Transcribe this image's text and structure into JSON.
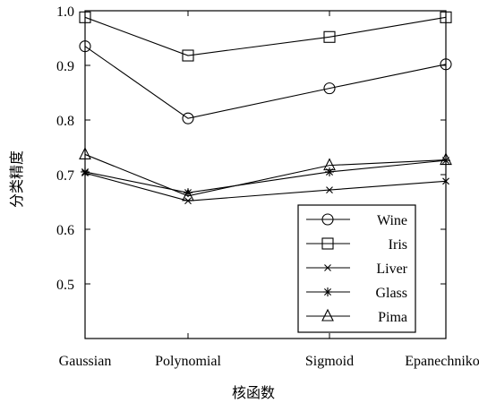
{
  "chart_data": {
    "type": "line",
    "title": "",
    "xlabel": "核函数",
    "ylabel": "分类精度",
    "categories": [
      "Gaussian",
      "Polynomial",
      "Sigmoid",
      "Epanechnikov"
    ],
    "ylim": [
      0.4,
      1.0
    ],
    "yticks": [
      "0.5",
      "0.6",
      "0.7",
      "0.8",
      "0.9",
      "1.0"
    ],
    "grid": false,
    "legend_position": "bottom-right",
    "series": [
      {
        "name": "Wine",
        "marker": "circle",
        "values": [
          0.935,
          0.803,
          0.858,
          0.902
        ]
      },
      {
        "name": "Iris",
        "marker": "square",
        "values": [
          0.988,
          0.918,
          0.952,
          0.988
        ]
      },
      {
        "name": "Liver",
        "marker": "x",
        "values": [
          0.703,
          0.652,
          0.672,
          0.688
        ]
      },
      {
        "name": "Glass",
        "marker": "asterisk",
        "values": [
          0.705,
          0.667,
          0.705,
          0.726
        ]
      },
      {
        "name": "Pima",
        "marker": "triangle",
        "values": [
          0.737,
          0.661,
          0.717,
          0.727
        ]
      }
    ]
  }
}
